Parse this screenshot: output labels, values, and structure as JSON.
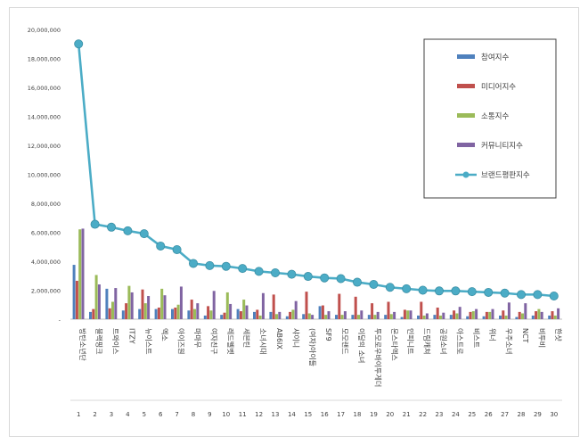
{
  "chart_data": {
    "type": "bar",
    "categories": [
      "방탄소년단",
      "블랙핑크",
      "트와이스",
      "ITZY",
      "뉴이스트",
      "엑소",
      "아이즈원",
      "마마무",
      "여자친구",
      "레드벨벳",
      "세븐틴",
      "소녀시대",
      "AB6IX",
      "샤이니",
      "(여자)아이들",
      "SF9",
      "모모랜드",
      "이달의 소녀",
      "투모로우바이투게더",
      "몬스타엑스",
      "인피니트",
      "드림캐쳐",
      "공원소녀",
      "아스트로",
      "비스트",
      "위너",
      "우주소녀",
      "NCT",
      "비투비",
      "한샷"
    ],
    "ranks": [
      "1",
      "2",
      "3",
      "4",
      "5",
      "6",
      "7",
      "8",
      "9",
      "10",
      "11",
      "12",
      "13",
      "14",
      "15",
      "16",
      "17",
      "18",
      "19",
      "20",
      "21",
      "22",
      "23",
      "24",
      "25",
      "26",
      "27",
      "28",
      "29",
      "30"
    ],
    "series": [
      {
        "name": "참여지수",
        "color": "#4f81bd",
        "values": [
          3750000,
          500000,
          2100000,
          600000,
          700000,
          700000,
          700000,
          600000,
          250000,
          300000,
          700000,
          500000,
          500000,
          200000,
          350000,
          900000,
          300000,
          300000,
          300000,
          300000,
          150000,
          250000,
          300000,
          300000,
          200000,
          200000,
          250000,
          150000,
          250000,
          250000
        ]
      },
      {
        "name": "미디어지수",
        "color": "#c0504d",
        "values": [
          2650000,
          700000,
          750000,
          1100000,
          2050000,
          800000,
          800000,
          1350000,
          900000,
          450000,
          550000,
          650000,
          1700000,
          500000,
          1900000,
          950000,
          1750000,
          1550000,
          1100000,
          1200000,
          650000,
          1200000,
          800000,
          600000,
          500000,
          500000,
          600000,
          500000,
          550000,
          550000
        ]
      },
      {
        "name": "소통지수",
        "color": "#9bbb59",
        "values": [
          6200000,
          3050000,
          1200000,
          2300000,
          1100000,
          2100000,
          1000000,
          700000,
          600000,
          1850000,
          1350000,
          250000,
          350000,
          650000,
          400000,
          300000,
          300000,
          300000,
          300000,
          350000,
          600000,
          250000,
          250000,
          400000,
          550000,
          500000,
          250000,
          400000,
          700000,
          250000
        ]
      },
      {
        "name": "커뮤니티지수",
        "color": "#8064a2",
        "values": [
          6250000,
          2400000,
          2150000,
          1850000,
          1600000,
          1650000,
          2250000,
          1100000,
          1950000,
          1050000,
          950000,
          1800000,
          500000,
          1250000,
          300000,
          550000,
          550000,
          600000,
          500000,
          500000,
          600000,
          400000,
          450000,
          850000,
          700000,
          700000,
          1150000,
          1100000,
          500000,
          750000
        ]
      }
    ],
    "line": {
      "name": "브랜드평판지수",
      "color": "#4bacc6",
      "values": [
        19000000,
        6550000,
        6350000,
        6100000,
        5900000,
        5050000,
        4800000,
        3850000,
        3700000,
        3650000,
        3500000,
        3300000,
        3200000,
        3100000,
        2950000,
        2850000,
        2800000,
        2550000,
        2400000,
        2200000,
        2100000,
        2000000,
        1950000,
        1950000,
        1900000,
        1850000,
        1800000,
        1700000,
        1700000,
        1600000
      ]
    },
    "yaxis": {
      "min": 0,
      "max": 20000000,
      "step": 2000000,
      "tick_labels": [
        "-",
        "2,000,000",
        "4,000,000",
        "6,000,000",
        "8,000,000",
        "10,000,000",
        "12,000,000",
        "14,000,000",
        "16,000,000",
        "18,000,000",
        "20,000,000"
      ]
    },
    "grid": false,
    "legend": "top-right"
  }
}
